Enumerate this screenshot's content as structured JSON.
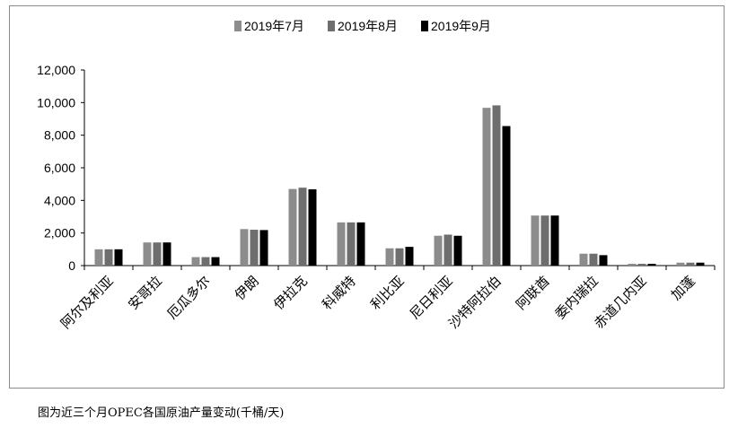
{
  "caption": "图为近三个月OPEC各国原油产量变动(千桶/天)",
  "chart_data": {
    "type": "bar",
    "categories": [
      "阿尔及利亚",
      "安哥拉",
      "厄瓜多尔",
      "伊朗",
      "伊拉克",
      "科威特",
      "利比亚",
      "尼日利亚",
      "沙特阿拉伯",
      "阿联酋",
      "委内瑞拉",
      "赤道几内亚",
      "加蓬"
    ],
    "series": [
      {
        "name": "2019年7月",
        "color": "#8c8c8c",
        "values": [
          1000,
          1420,
          520,
          2240,
          4700,
          2650,
          1060,
          1830,
          9680,
          3070,
          730,
          110,
          180
        ]
      },
      {
        "name": "2019年8月",
        "color": "#6e6e6e",
        "values": [
          1000,
          1420,
          520,
          2200,
          4780,
          2650,
          1060,
          1900,
          9830,
          3070,
          730,
          110,
          180
        ]
      },
      {
        "name": "2019年9月",
        "color": "#000000",
        "values": [
          1000,
          1420,
          520,
          2180,
          4680,
          2650,
          1150,
          1830,
          8560,
          3070,
          640,
          110,
          180
        ]
      }
    ],
    "ylim": [
      0,
      12000
    ],
    "yticks": [
      0,
      2000,
      4000,
      6000,
      8000,
      10000,
      12000
    ],
    "ytick_labels": [
      "0",
      "2,000",
      "4,000",
      "6,000",
      "8,000",
      "10,000",
      "12,000"
    ],
    "grid": false,
    "legend_position": "top-center",
    "title": "",
    "xlabel": "",
    "ylabel": ""
  }
}
